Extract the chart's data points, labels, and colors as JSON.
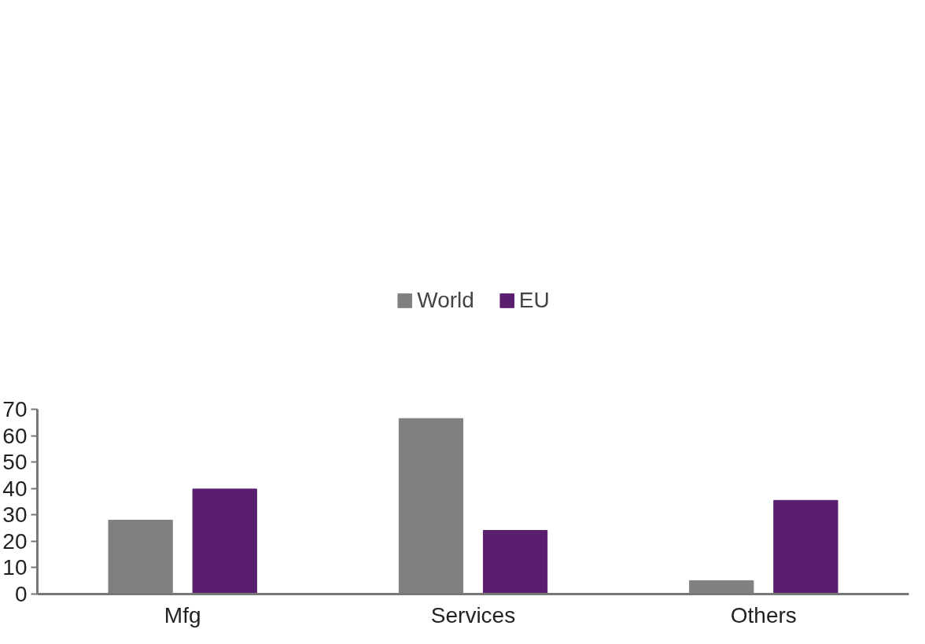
{
  "chart_data": {
    "type": "bar",
    "categories": [
      "Mfg",
      "Services",
      "Others"
    ],
    "series": [
      {
        "name": "World",
        "color": "#808080",
        "values": [
          28,
          66.5,
          5.1
        ]
      },
      {
        "name": "EU",
        "color": "#5a1e6e",
        "values": [
          39.8,
          24.1,
          35.5
        ]
      }
    ],
    "ylim": [
      0,
      70
    ],
    "yticks": [
      0,
      10,
      20,
      30,
      40,
      50,
      60,
      70
    ],
    "grid": false,
    "legend": "top"
  }
}
